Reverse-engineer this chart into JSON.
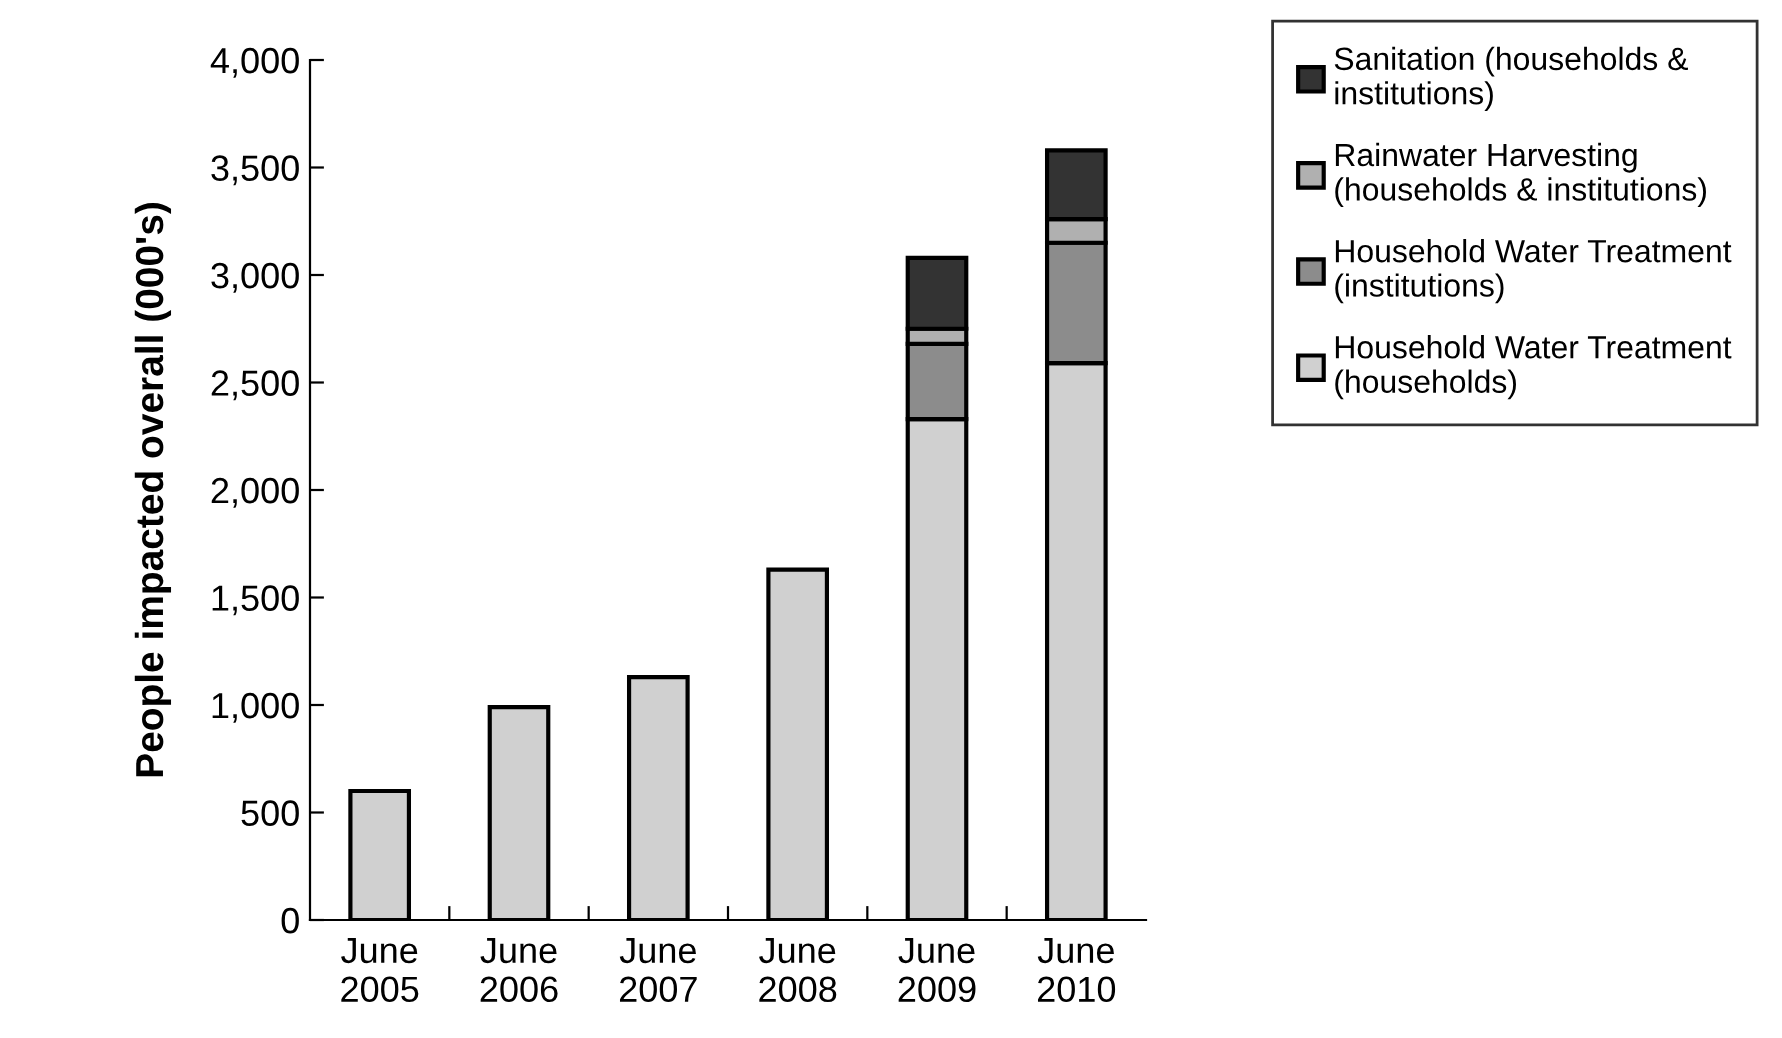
{
  "chart_data": {
    "type": "bar",
    "stacked": true,
    "ylabel": "People impacted overall (000's)",
    "categories": [
      "June\n2005",
      "June\n2006",
      "June\n2007",
      "June\n2008",
      "June\n2009",
      "June\n2010"
    ],
    "series": [
      {
        "name": "Household Water Treatment\n(households)",
        "color": "#d0d0d0",
        "values": [
          600,
          990,
          1130,
          1630,
          2330,
          2590
        ]
      },
      {
        "name": "Household Water Treatment\n(institutions)",
        "color": "#8c8c8c",
        "values": [
          null,
          null,
          null,
          null,
          350,
          560
        ]
      },
      {
        "name": "Rainwater Harvesting\n(households & institutions)",
        "color": "#b0b0b0",
        "values": [
          null,
          null,
          null,
          null,
          70,
          110
        ]
      },
      {
        "name": "Sanitation (households &\ninstitutions)",
        "color": "#333333",
        "values": [
          null,
          null,
          null,
          null,
          330,
          320
        ]
      }
    ],
    "ylim": [
      0,
      4000
    ],
    "yticks": [
      {
        "value": 0,
        "label": "0"
      },
      {
        "value": 500,
        "label": "500"
      },
      {
        "value": 1000,
        "label": "1,000"
      },
      {
        "value": 1500,
        "label": "1,500"
      },
      {
        "value": 2000,
        "label": "2,000"
      },
      {
        "value": 2500,
        "label": "2,500"
      },
      {
        "value": 3000,
        "label": "3,000"
      },
      {
        "value": 3500,
        "label": "3,500"
      },
      {
        "value": 4000,
        "label": "4,000"
      }
    ],
    "grid": false,
    "legend": "top right"
  }
}
